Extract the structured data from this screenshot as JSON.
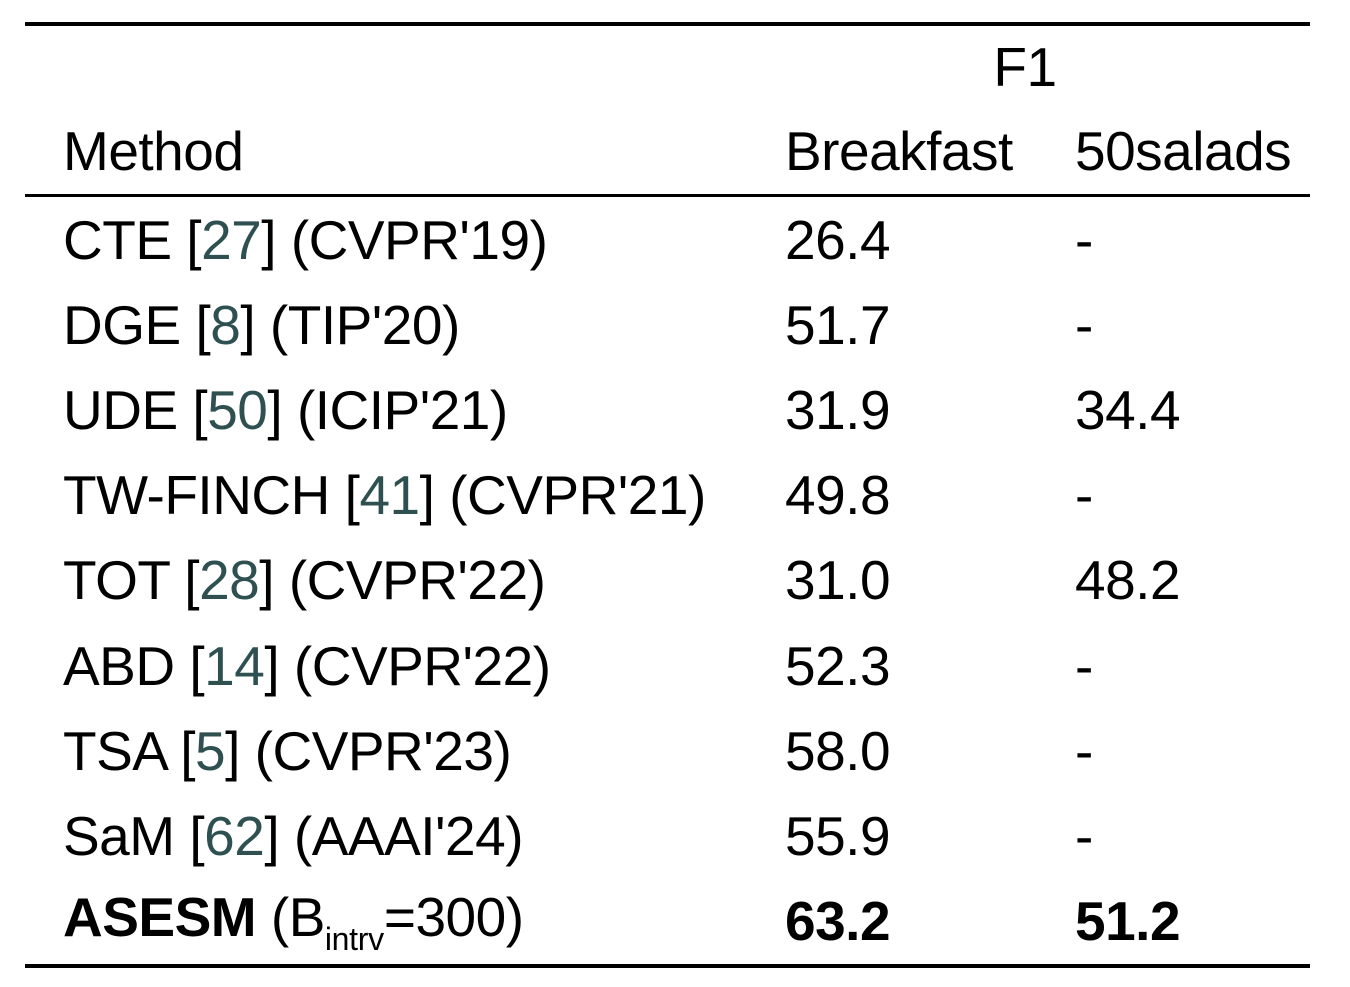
{
  "page": {
    "background": "#ffffff",
    "text_color": "#000000",
    "citation_color": "#2F5050"
  },
  "table": {
    "group_header": "F1",
    "columns": {
      "method": "Method",
      "breakfast": "Breakfast",
      "salads": "50salads"
    },
    "punct": {
      "open": "[",
      "close": "]"
    },
    "rows": [
      {
        "name": "CTE",
        "cite": "27",
        "venue": "(CVPR'19)",
        "breakfast": "26.4",
        "salads": "-"
      },
      {
        "name": "DGE",
        "cite": "8",
        "venue": "(TIP'20)",
        "breakfast": "51.7",
        "salads": "-"
      },
      {
        "name": "UDE",
        "cite": "50",
        "venue": "(ICIP'21)",
        "breakfast": "31.9",
        "salads": "34.4"
      },
      {
        "name": "TW-FINCH",
        "cite": "41",
        "venue": "(CVPR'21)",
        "breakfast": "49.8",
        "salads": "-"
      },
      {
        "name": "TOT",
        "cite": "28",
        "venue": "(CVPR'22)",
        "breakfast": "31.0",
        "salads": "48.2"
      },
      {
        "name": "ABD",
        "cite": "14",
        "venue": "(CVPR'22)",
        "breakfast": "52.3",
        "salads": "-"
      },
      {
        "name": "TSA",
        "cite": "5",
        "venue": "(CVPR'23)",
        "breakfast": "58.0",
        "salads": "-"
      },
      {
        "name": "SaM",
        "cite": "62",
        "venue": "(AAAI'24)",
        "breakfast": "55.9",
        "salads": "-"
      },
      {
        "name": "ASESM",
        "spec_pre": "(B",
        "spec_sub": "intrv",
        "spec_post": "=300)",
        "breakfast": "63.2",
        "salads": "51.2"
      }
    ]
  }
}
